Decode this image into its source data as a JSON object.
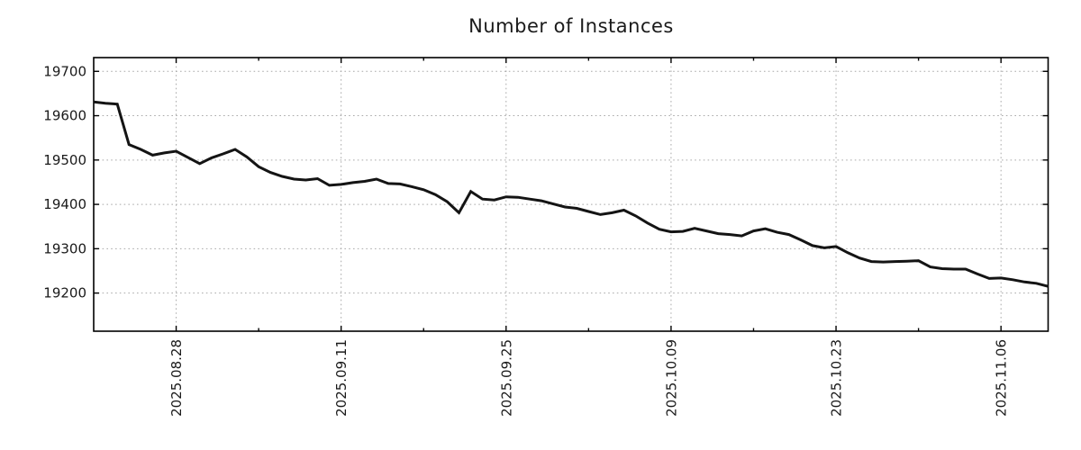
{
  "page": {
    "background": "#ffffff",
    "text_color": "#1a1a1a"
  },
  "chart_data": {
    "type": "line",
    "title": "Number of Instances",
    "xlabel": "",
    "ylabel": "",
    "grid": true,
    "legend": "none",
    "line_color": "#141414",
    "grid_color": "#a9a9a9",
    "ylim": [
      19114,
      19731
    ],
    "yticks": [
      19200,
      19300,
      19400,
      19500,
      19600,
      19700
    ],
    "xticks": [
      {
        "i": 7,
        "label": "2025.08.28"
      },
      {
        "i": 21,
        "label": "2025.09.11"
      },
      {
        "i": 35,
        "label": "2025.09.25"
      },
      {
        "i": 49,
        "label": "2025.10.09"
      },
      {
        "i": 63,
        "label": "2025.10.23"
      },
      {
        "i": 77,
        "label": "2025.11.06"
      }
    ],
    "xminors": [
      14,
      28,
      42,
      56,
      70
    ],
    "x": [
      "2025.08.21",
      "2025.08.22",
      "2025.08.23",
      "2025.08.24",
      "2025.08.25",
      "2025.08.26",
      "2025.08.27",
      "2025.08.28",
      "2025.08.29",
      "2025.08.30",
      "2025.08.31",
      "2025.09.01",
      "2025.09.02",
      "2025.09.03",
      "2025.09.04",
      "2025.09.05",
      "2025.09.06",
      "2025.09.07",
      "2025.09.08",
      "2025.09.09",
      "2025.09.10",
      "2025.09.11",
      "2025.09.12",
      "2025.09.13",
      "2025.09.14",
      "2025.09.15",
      "2025.09.16",
      "2025.09.17",
      "2025.09.18",
      "2025.09.19",
      "2025.09.20",
      "2025.09.21",
      "2025.09.22",
      "2025.09.23",
      "2025.09.24",
      "2025.09.25",
      "2025.09.26",
      "2025.09.27",
      "2025.09.28",
      "2025.09.29",
      "2025.09.30",
      "2025.10.01",
      "2025.10.02",
      "2025.10.03",
      "2025.10.04",
      "2025.10.05",
      "2025.10.06",
      "2025.10.07",
      "2025.10.08",
      "2025.10.09",
      "2025.10.10",
      "2025.10.11",
      "2025.10.12",
      "2025.10.13",
      "2025.10.14",
      "2025.10.15",
      "2025.10.16",
      "2025.10.17",
      "2025.10.18",
      "2025.10.19",
      "2025.10.20",
      "2025.10.21",
      "2025.10.22",
      "2025.10.23",
      "2025.10.24",
      "2025.10.25",
      "2025.10.26",
      "2025.10.27",
      "2025.10.28",
      "2025.10.29",
      "2025.10.30",
      "2025.10.31",
      "2025.11.01",
      "2025.11.02",
      "2025.11.03",
      "2025.11.04",
      "2025.11.05",
      "2025.11.06",
      "2025.11.07",
      "2025.11.08",
      "2025.11.09",
      "2025.11.10"
    ],
    "values": [
      19631,
      19628,
      19626,
      19535,
      19524,
      19511,
      19516,
      19520,
      19506,
      19492,
      19505,
      19514,
      19524,
      19507,
      19485,
      19472,
      19463,
      19457,
      19455,
      19458,
      19443,
      19445,
      19449,
      19452,
      19457,
      19447,
      19446,
      19440,
      19433,
      19422,
      19406,
      19381,
      19429,
      19412,
      19410,
      19417,
      19416,
      19412,
      19408,
      19401,
      19394,
      19391,
      19384,
      19377,
      19381,
      19387,
      19374,
      19358,
      19344,
      19338,
      19339,
      19346,
      19340,
      19334,
      19332,
      19329,
      19340,
      19345,
      19337,
      19332,
      19320,
      19307,
      19302,
      19305,
      19291,
      19279,
      19271,
      19270,
      19271,
      19272,
      19273,
      19259,
      19255,
      19254,
      19254,
      19243,
      19233,
      19234,
      19230,
      19225,
      19222,
      19215
    ]
  }
}
